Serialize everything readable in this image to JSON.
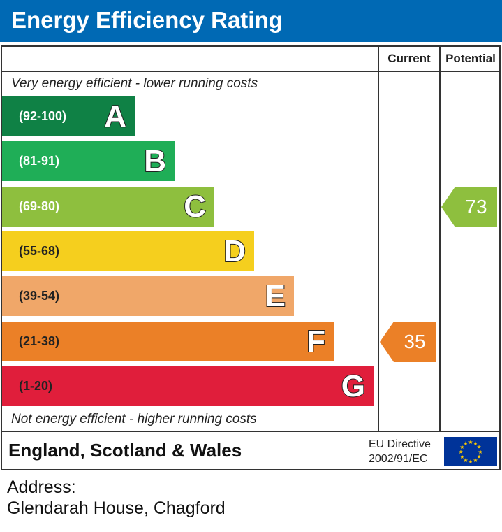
{
  "title": "Energy Efficiency Rating",
  "columns": {
    "current": "Current",
    "potential": "Potential"
  },
  "top_note": "Very energy efficient - lower running costs",
  "bottom_note": "Not energy efficient - higher running costs",
  "region": "England, Scotland & Wales",
  "directive": {
    "line1": "EU Directive",
    "line2": "2002/91/EC"
  },
  "address": {
    "label": "Address:",
    "value": "Glendarah House, Chagford"
  },
  "colors": {
    "title_bar": "#0069b4",
    "eu_flag": "#003399",
    "eu_stars": "#ffcc00"
  },
  "chart_data": {
    "type": "bar",
    "title": "Energy Efficiency Rating",
    "bands": [
      {
        "letter": "A",
        "range": "(92-100)",
        "color": "#0f8145"
      },
      {
        "letter": "B",
        "range": "(81-91)",
        "color": "#1fae57"
      },
      {
        "letter": "C",
        "range": "(69-80)",
        "color": "#8ebf3e"
      },
      {
        "letter": "D",
        "range": "(55-68)",
        "color": "#f5cf1e"
      },
      {
        "letter": "E",
        "range": "(39-54)",
        "color": "#f0a769"
      },
      {
        "letter": "F",
        "range": "(21-38)",
        "color": "#eb8027"
      },
      {
        "letter": "G",
        "range": "(1-20)",
        "color": "#e01e3b"
      }
    ],
    "current": {
      "value": 35,
      "band": "F",
      "color": "#eb8027"
    },
    "potential": {
      "value": 73,
      "band": "C",
      "color": "#8ebf3e"
    }
  }
}
